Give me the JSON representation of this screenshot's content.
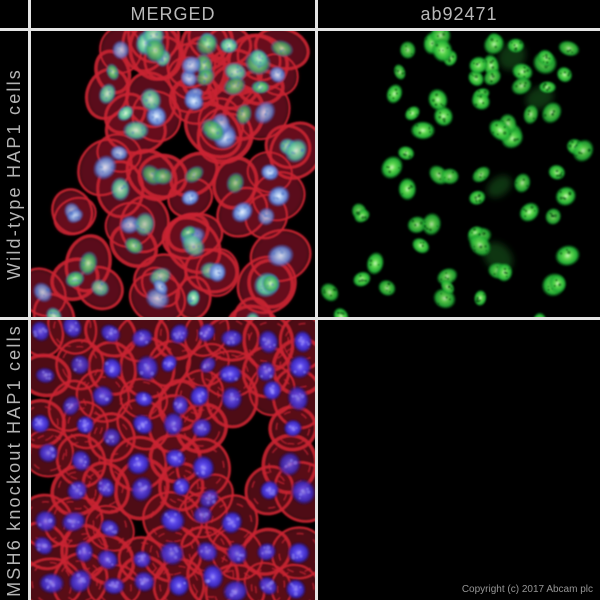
{
  "figure": {
    "background": "#000000",
    "divider_color": "#e4e4e4",
    "copyright": "Copyright (c) 2017 Abcam plc"
  },
  "header": {
    "col1": "MERGED",
    "col2": "ab92471"
  },
  "rows": [
    {
      "label": "Wild-type HAP1 cells"
    },
    {
      "label": "MSH6 knockout HAP1 cells"
    }
  ],
  "panels": [
    {
      "name": "merged-wildtype",
      "description": "red membrane stain with green/blue nuclei"
    },
    {
      "name": "ab92471-wildtype",
      "description": "green nuclear stain"
    },
    {
      "name": "merged-msh6-knockout",
      "description": "red membrane stain with blue nuclei, no green"
    },
    {
      "name": "ab92471-msh6-knockout",
      "description": "black, no signal"
    }
  ],
  "microscopy": {
    "wt_field": {
      "seed": 11,
      "clusters": [
        [
          0.45,
          0.05,
          4
        ],
        [
          0.66,
          0.08,
          5
        ],
        [
          0.86,
          0.13,
          4
        ],
        [
          0.3,
          0.17,
          3
        ],
        [
          0.55,
          0.2,
          5
        ],
        [
          0.79,
          0.26,
          4
        ],
        [
          0.4,
          0.33,
          4
        ],
        [
          0.67,
          0.38,
          4
        ],
        [
          0.89,
          0.47,
          3
        ],
        [
          0.24,
          0.46,
          3
        ],
        [
          0.52,
          0.53,
          4
        ],
        [
          0.76,
          0.61,
          4
        ],
        [
          0.1,
          0.64,
          2
        ],
        [
          0.37,
          0.69,
          3
        ],
        [
          0.61,
          0.75,
          4
        ],
        [
          0.86,
          0.79,
          3
        ],
        [
          0.2,
          0.85,
          3
        ],
        [
          0.47,
          0.91,
          4
        ],
        [
          0.74,
          0.94,
          3
        ],
        [
          0.07,
          0.97,
          2
        ]
      ],
      "nucleus_variants": {
        "blue": [
          "#e8f0ff",
          "#a8c4ee",
          "#6484d4",
          "#3850b4"
        ],
        "teal": [
          "#e2f8e0",
          "#96e0b0",
          "#4fb896",
          "#3a6cc0"
        ],
        "green": [
          "#d4f4c4",
          "#7ad47f",
          "#3ca468",
          "#3a6cc0"
        ]
      },
      "green_channel": [
        "#c4f4b0",
        "#5fd84f",
        "#24b336",
        "#0c7a1f"
      ],
      "speckle_color": "rgba(10,86,22,0.6)",
      "membrane": "#c92331",
      "cytoplasm": "#6a101c"
    },
    "ko_field": {
      "seed": 29,
      "grid_cols": 9,
      "grid_rows": 9,
      "skips": [
        [
          6,
          3
        ],
        [
          7,
          3
        ],
        [
          6,
          4
        ],
        [
          7,
          4
        ],
        [
          6,
          5
        ],
        [
          7,
          6
        ],
        [
          8,
          6
        ],
        [
          2,
          4
        ],
        [
          0,
          2
        ],
        [
          0,
          5
        ],
        [
          3,
          6
        ]
      ],
      "nucleus": [
        "#9a8cf6",
        "#5c48ea",
        "#3a28c0",
        "#1c1070"
      ],
      "speckle_color": "rgba(160,150,250,0.45)",
      "membrane": "#c92331",
      "cytoplasm": "#5c0d16"
    }
  }
}
